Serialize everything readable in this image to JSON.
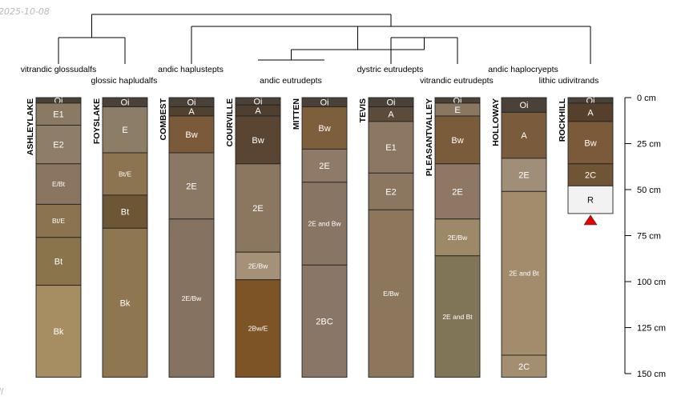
{
  "chart_data": {
    "type": "soil-profile-sketch",
    "depth_unit": "cm",
    "depth_ticks": [
      0,
      25,
      50,
      75,
      100,
      125,
      150
    ],
    "depth_range": [
      0,
      150
    ],
    "depth_tick_labels": [
      "0 cm",
      "25 cm",
      "50 cm",
      "75 cm",
      "100 cm",
      "125 cm",
      "150 cm"
    ],
    "corner_text": {
      "top": "2025-10-08",
      "bottom": "ll"
    },
    "dendrogram_leaf_order": [
      "ASHLEYLAKE",
      "FOYSLAKE",
      "COMBEST",
      "COURVILLE",
      "MITTEN",
      "TEVIS",
      "PLEASANTVALLEY",
      "HOLLOWAY",
      "ROCKHILL"
    ],
    "taxa_labels": [
      {
        "label": "vitrandic glossudalfs",
        "row": 1
      },
      {
        "label": "glossic hapludalfs",
        "row": 2
      },
      {
        "label": "andic haplustepts",
        "row": 1
      },
      {
        "label": "andic eutrudepts",
        "row": 2
      },
      {
        "label": "dystric eutrudepts",
        "row": 1
      },
      {
        "label": "vitrandic eutrudepts",
        "row": 2
      },
      {
        "label": "andic haplocryepts",
        "row": 1
      },
      {
        "label": "lithic udivitrands",
        "row": 2
      }
    ],
    "profiles": [
      {
        "name": "ASHLEYLAKE",
        "horizons": [
          {
            "name": "Oi",
            "top": 0,
            "bottom": 3,
            "color": "#4a4238"
          },
          {
            "name": "E1",
            "top": 3,
            "bottom": 15,
            "color": "#8a7a64"
          },
          {
            "name": "E2",
            "top": 15,
            "bottom": 36,
            "color": "#8e7d67"
          },
          {
            "name": "E/Bt",
            "top": 36,
            "bottom": 58,
            "color": "#8a7561"
          },
          {
            "name": "Bt/E",
            "top": 58,
            "bottom": 76,
            "color": "#8b7350"
          },
          {
            "name": "Bt",
            "top": 76,
            "bottom": 102,
            "color": "#8a744c"
          },
          {
            "name": "Bk",
            "top": 102,
            "bottom": 152,
            "color": "#a68e62"
          }
        ]
      },
      {
        "name": "FOYSLAKE",
        "horizons": [
          {
            "name": "Oi",
            "top": 0,
            "bottom": 5,
            "color": "#4a4238"
          },
          {
            "name": "E",
            "top": 5,
            "bottom": 30,
            "color": "#8c7e66"
          },
          {
            "name": "Bt/E",
            "top": 30,
            "bottom": 53,
            "color": "#8d7450"
          },
          {
            "name": "Bt",
            "top": 53,
            "bottom": 71,
            "color": "#6c5634"
          },
          {
            "name": "Bk",
            "top": 71,
            "bottom": 152,
            "color": "#8e7650"
          }
        ]
      },
      {
        "name": "COMBEST",
        "horizons": [
          {
            "name": "Oi",
            "top": 0,
            "bottom": 5,
            "color": "#4a4238"
          },
          {
            "name": "A",
            "top": 5,
            "bottom": 10,
            "color": "#51412f"
          },
          {
            "name": "Bw",
            "top": 10,
            "bottom": 30,
            "color": "#7a5a38"
          },
          {
            "name": "2E",
            "top": 30,
            "bottom": 66,
            "color": "#8a7865"
          },
          {
            "name": "2E/Bw",
            "top": 66,
            "bottom": 152,
            "color": "#857260"
          }
        ]
      },
      {
        "name": "COURVILLE",
        "horizons": [
          {
            "name": "Oi",
            "top": 0,
            "bottom": 4,
            "color": "#4a4238"
          },
          {
            "name": "A",
            "top": 4,
            "bottom": 10,
            "color": "#4e3f31"
          },
          {
            "name": "Bw",
            "top": 10,
            "bottom": 36,
            "color": "#5a4532"
          },
          {
            "name": "2E",
            "top": 36,
            "bottom": 84,
            "color": "#8b7760"
          },
          {
            "name": "2E/Bw",
            "top": 84,
            "bottom": 99,
            "color": "#a49178"
          },
          {
            "name": "2Bw/E",
            "top": 99,
            "bottom": 152,
            "color": "#7d5426"
          }
        ]
      },
      {
        "name": "MITTEN",
        "horizons": [
          {
            "name": "Oi",
            "top": 0,
            "bottom": 5,
            "color": "#4a4238"
          },
          {
            "name": "Bw",
            "top": 5,
            "bottom": 28,
            "color": "#7d5f3c"
          },
          {
            "name": "2E",
            "top": 28,
            "bottom": 46,
            "color": "#8e7a66"
          },
          {
            "name": "2E and Bw",
            "top": 46,
            "bottom": 91,
            "color": "#887563"
          },
          {
            "name": "2BC",
            "top": 91,
            "bottom": 152,
            "color": "#8a7666"
          }
        ]
      },
      {
        "name": "TEVIS",
        "horizons": [
          {
            "name": "Oi",
            "top": 0,
            "bottom": 5,
            "color": "#4a4238"
          },
          {
            "name": "A",
            "top": 5,
            "bottom": 13,
            "color": "#5c4b3a"
          },
          {
            "name": "E1",
            "top": 13,
            "bottom": 41,
            "color": "#8c7762"
          },
          {
            "name": "E2",
            "top": 41,
            "bottom": 61,
            "color": "#8b7660"
          },
          {
            "name": "E/Bw",
            "top": 61,
            "bottom": 152,
            "color": "#8c775c"
          }
        ]
      },
      {
        "name": "PLEASANTVALLEY",
        "horizons": [
          {
            "name": "Oi",
            "top": 0,
            "bottom": 3,
            "color": "#4a4238"
          },
          {
            "name": "E",
            "top": 3,
            "bottom": 10,
            "color": "#8a7762"
          },
          {
            "name": "Bw",
            "top": 10,
            "bottom": 36,
            "color": "#7a5c3a"
          },
          {
            "name": "2E",
            "top": 36,
            "bottom": 66,
            "color": "#8e7863"
          },
          {
            "name": "2E/Bw",
            "top": 66,
            "bottom": 86,
            "color": "#9d8967"
          },
          {
            "name": "2E and Bt",
            "top": 86,
            "bottom": 152,
            "color": "#817558"
          }
        ]
      },
      {
        "name": "HOLLOWAY",
        "horizons": [
          {
            "name": "Oi",
            "top": 0,
            "bottom": 8,
            "color": "#4a4238"
          },
          {
            "name": "A",
            "top": 8,
            "bottom": 33,
            "color": "#7a5c3c"
          },
          {
            "name": "2E",
            "top": 33,
            "bottom": 51,
            "color": "#a08e78"
          },
          {
            "name": "2E and Bt",
            "top": 51,
            "bottom": 140,
            "color": "#a38c6c"
          },
          {
            "name": "2C",
            "top": 140,
            "bottom": 152,
            "color": "#a48e70"
          }
        ]
      },
      {
        "name": "ROCKHILL",
        "horizons": [
          {
            "name": "Oi",
            "top": 0,
            "bottom": 3,
            "color": "#4a4238"
          },
          {
            "name": "A",
            "top": 3,
            "bottom": 13,
            "color": "#54402c"
          },
          {
            "name": "Bw",
            "top": 13,
            "bottom": 36,
            "color": "#7a5a38"
          },
          {
            "name": "2C",
            "top": 36,
            "bottom": 48,
            "color": "#6f5436"
          },
          {
            "name": "R",
            "top": 48,
            "bottom": 63,
            "color": "#f2f2f2"
          }
        ],
        "depth_to_contact_marker": true
      }
    ]
  }
}
